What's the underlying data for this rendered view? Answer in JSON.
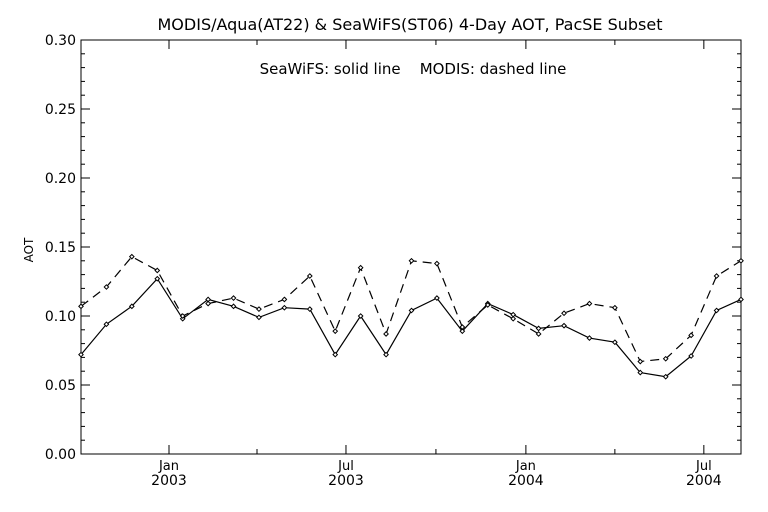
{
  "chart_data": {
    "type": "line",
    "title": "MODIS/Aqua(AT22) & SeaWiFS(ST06) 4-Day AOT, PacSE Subset",
    "annotation": "SeaWiFS: solid line    MODIS: dashed line",
    "ylabel": "AOT",
    "xlabel": "",
    "ylim": [
      0.0,
      0.3
    ],
    "yticks": [
      "0.00",
      "0.05",
      "0.10",
      "0.15",
      "0.20",
      "0.25",
      "0.30"
    ],
    "xlim": [
      "2002-10-03",
      "2004-08-08"
    ],
    "xticks": [
      {
        "month": "Jan",
        "year": "2003",
        "date": "2003-01-01"
      },
      {
        "month": "Jul",
        "year": "2003",
        "date": "2003-07-01"
      },
      {
        "month": "Jan",
        "year": "2004",
        "date": "2004-01-01"
      },
      {
        "month": "Jul",
        "year": "2004",
        "date": "2004-07-01"
      }
    ],
    "grid": false,
    "series": [
      {
        "name": "SeaWiFS",
        "style": "solid",
        "x": [
          "2002-10-03",
          "2002-10-29",
          "2002-11-24",
          "2002-12-20",
          "2003-01-15",
          "2003-02-10",
          "2003-03-08",
          "2003-04-03",
          "2003-04-29",
          "2003-05-25",
          "2003-06-20",
          "2003-07-16",
          "2003-08-11",
          "2003-09-06",
          "2003-10-02",
          "2003-10-28",
          "2003-11-23",
          "2003-12-19",
          "2004-01-14",
          "2004-02-09",
          "2004-03-06",
          "2004-04-01",
          "2004-04-27",
          "2004-05-23",
          "2004-06-18",
          "2004-07-14",
          "2004-08-08"
        ],
        "values": [
          0.072,
          0.094,
          0.107,
          0.127,
          0.098,
          0.112,
          0.107,
          0.099,
          0.106,
          0.105,
          0.072,
          0.1,
          0.072,
          0.104,
          0.113,
          0.089,
          0.109,
          0.101,
          0.091,
          0.093,
          0.084,
          0.081,
          0.059,
          0.056,
          0.071,
          0.104,
          0.112
        ]
      },
      {
        "name": "MODIS",
        "style": "dashed",
        "x": [
          "2002-10-03",
          "2002-10-29",
          "2002-11-24",
          "2002-12-20",
          "2003-01-15",
          "2003-02-10",
          "2003-03-08",
          "2003-04-03",
          "2003-04-29",
          "2003-05-25",
          "2003-06-20",
          "2003-07-16",
          "2003-08-11",
          "2003-09-06",
          "2003-10-02",
          "2003-10-28",
          "2003-11-23",
          "2003-12-19",
          "2004-01-14",
          "2004-02-09",
          "2004-03-06",
          "2004-04-01",
          "2004-04-27",
          "2004-05-23",
          "2004-06-18",
          "2004-07-14",
          "2004-08-08"
        ],
        "values": [
          0.107,
          0.121,
          0.143,
          0.133,
          0.1,
          0.109,
          0.113,
          0.105,
          0.112,
          0.129,
          0.089,
          0.135,
          0.087,
          0.14,
          0.138,
          0.092,
          0.108,
          0.098,
          0.087,
          0.102,
          0.109,
          0.106,
          0.067,
          0.069,
          0.086,
          0.129,
          0.14
        ]
      }
    ]
  }
}
